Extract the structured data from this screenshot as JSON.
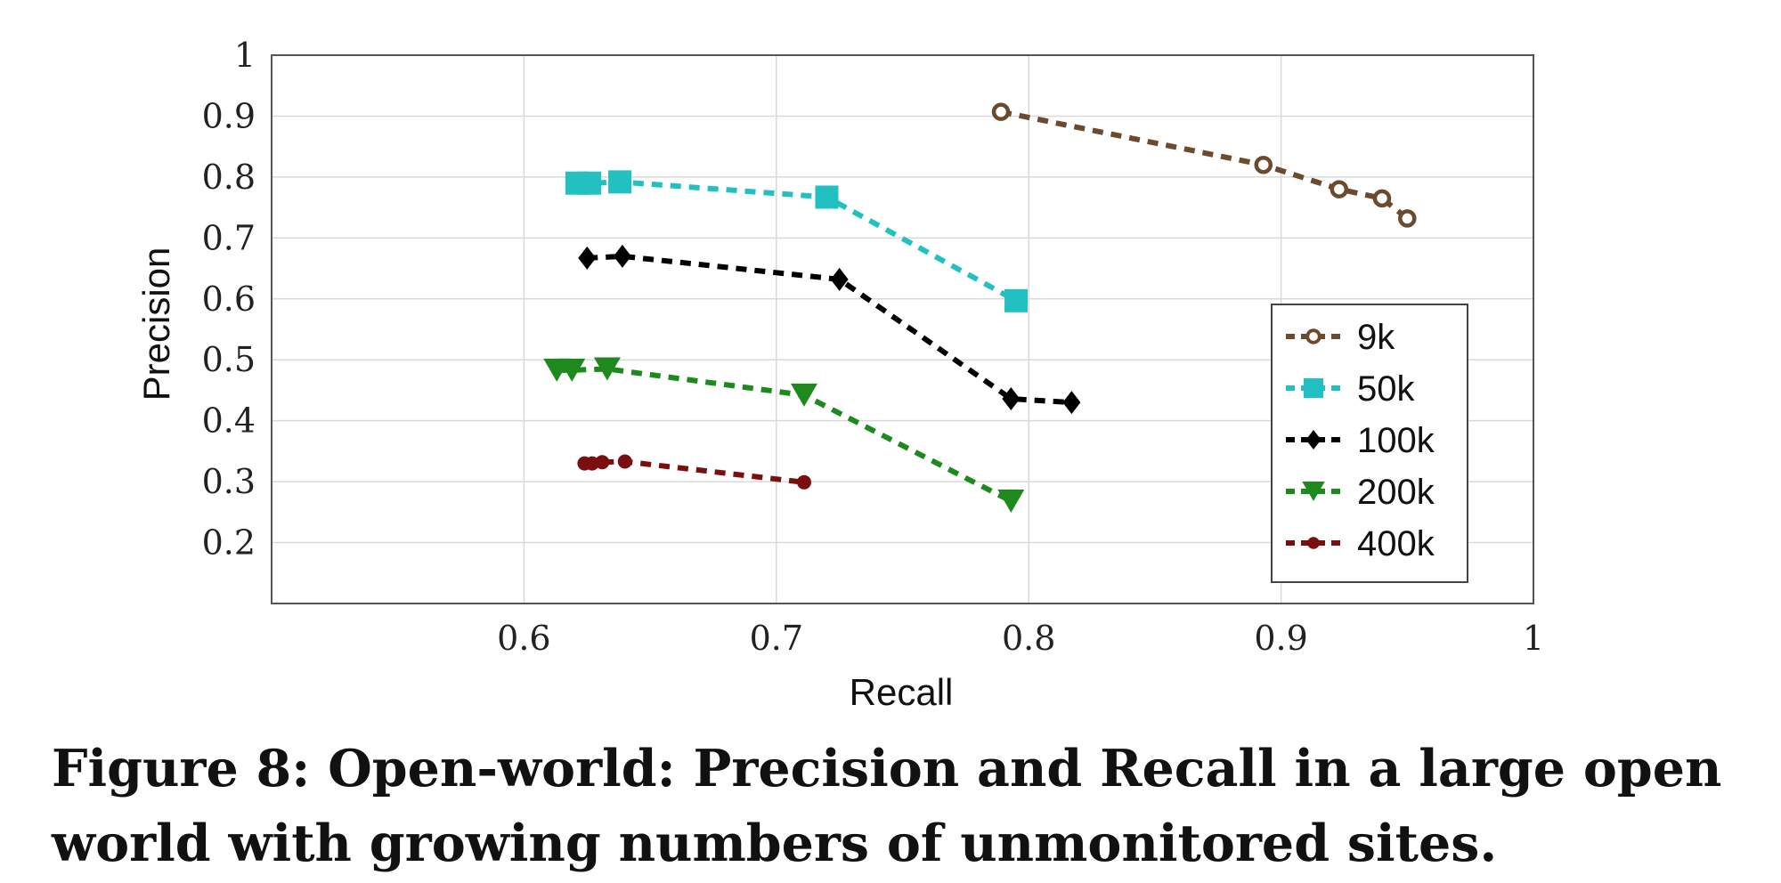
{
  "chart_data": {
    "type": "line",
    "title": "",
    "xlabel": "Recall",
    "ylabel": "Precision",
    "xlim": [
      0.5,
      1.0
    ],
    "ylim": [
      0.1,
      1.0
    ],
    "xticks": [
      0.6,
      0.7,
      0.8,
      0.9,
      1.0
    ],
    "xtick_labels": [
      "0.6",
      "0.7",
      "0.8",
      "0.9",
      "1"
    ],
    "yticks": [
      0.2,
      0.3,
      0.4,
      0.5,
      0.6,
      0.7,
      0.8,
      0.9,
      1.0
    ],
    "ytick_labels": [
      "0.2",
      "0.3",
      "0.4",
      "0.5",
      "0.6",
      "0.7",
      "0.8",
      "0.9",
      "1"
    ],
    "grid": true,
    "legend_position": "center-right",
    "series": [
      {
        "name": "9k",
        "color": "#6b4a2e",
        "marker": "circle-open",
        "x": [
          0.789,
          0.893,
          0.923,
          0.94,
          0.95
        ],
        "y": [
          0.907,
          0.82,
          0.78,
          0.765,
          0.732
        ]
      },
      {
        "name": "50k",
        "color": "#22c0c0",
        "marker": "square",
        "x": [
          0.621,
          0.626,
          0.638,
          0.72,
          0.795
        ],
        "y": [
          0.79,
          0.79,
          0.792,
          0.767,
          0.597
        ]
      },
      {
        "name": "100k",
        "color": "#000000",
        "marker": "diamond",
        "x": [
          0.625,
          0.639,
          0.725,
          0.793,
          0.817
        ],
        "y": [
          0.667,
          0.67,
          0.632,
          0.436,
          0.43
        ]
      },
      {
        "name": "200k",
        "color": "#1e8a1e",
        "marker": "triangle-down",
        "x": [
          0.613,
          0.619,
          0.633,
          0.711,
          0.793
        ],
        "y": [
          0.483,
          0.483,
          0.485,
          0.442,
          0.268
        ]
      },
      {
        "name": "400k",
        "color": "#7a0f0f",
        "marker": "dot",
        "x": [
          0.624,
          0.627,
          0.631,
          0.64,
          0.711
        ],
        "y": [
          0.33,
          0.33,
          0.332,
          0.333,
          0.299
        ]
      }
    ]
  },
  "caption": {
    "line1": "Figure 8: Open-world: Precision and Recall in a large open",
    "line2": "world with growing numbers of unmonitored sites."
  }
}
